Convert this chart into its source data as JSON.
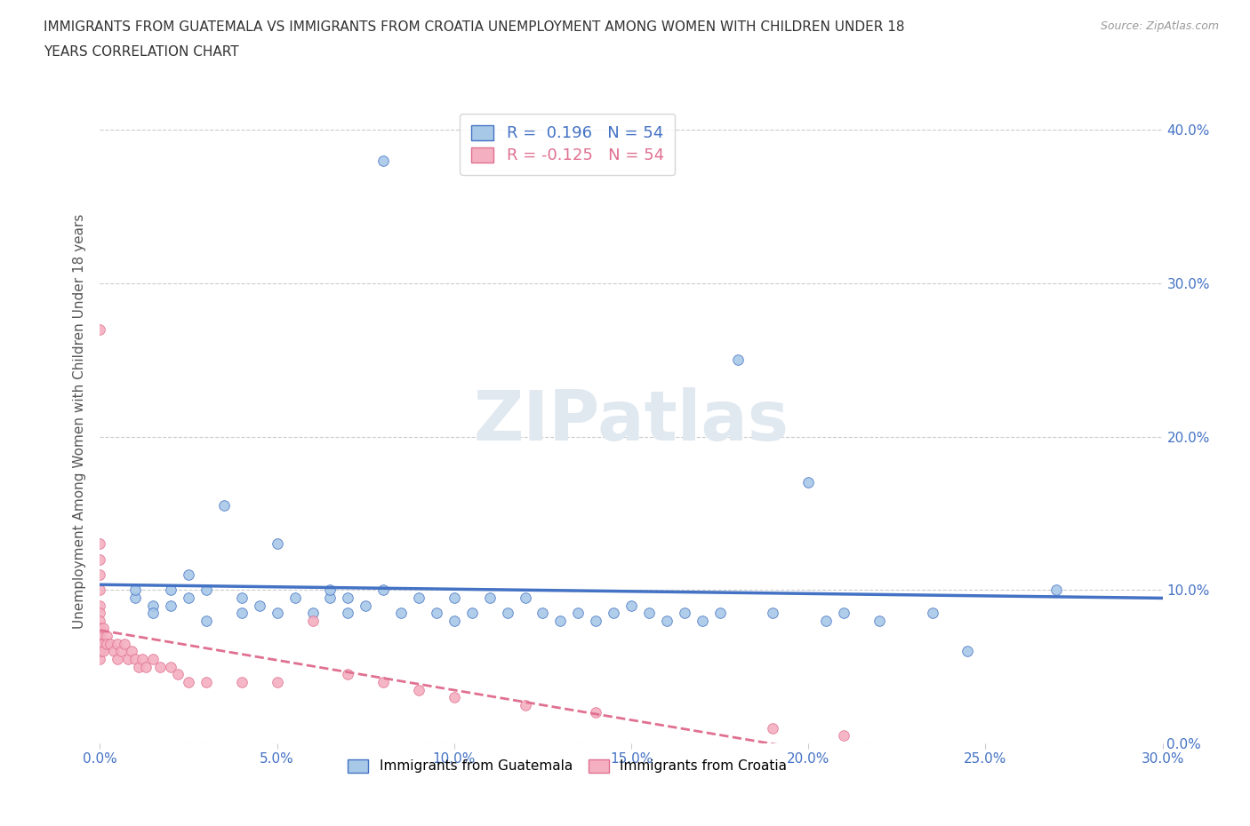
{
  "title_line1": "IMMIGRANTS FROM GUATEMALA VS IMMIGRANTS FROM CROATIA UNEMPLOYMENT AMONG WOMEN WITH CHILDREN UNDER 18",
  "title_line2": "YEARS CORRELATION CHART",
  "source": "Source: ZipAtlas.com",
  "ylabel_label": "Unemployment Among Women with Children Under 18 years",
  "xmin": 0.0,
  "xmax": 0.3,
  "ymin": 0.0,
  "ymax": 0.42,
  "r_guatemala": 0.196,
  "n_guatemala": 54,
  "r_croatia": -0.125,
  "n_croatia": 54,
  "color_guatemala": "#a8c8e8",
  "color_croatia": "#f4b0c0",
  "trend_color_guatemala": "#4472c4",
  "trend_color_croatia": "#e07090",
  "watermark": "ZIPatlas",
  "guatemala_x": [
    0.08,
    0.01,
    0.015,
    0.01,
    0.015,
    0.02,
    0.02,
    0.025,
    0.025,
    0.03,
    0.03,
    0.035,
    0.04,
    0.04,
    0.045,
    0.05,
    0.05,
    0.055,
    0.06,
    0.065,
    0.065,
    0.07,
    0.07,
    0.075,
    0.08,
    0.085,
    0.09,
    0.095,
    0.1,
    0.1,
    0.105,
    0.11,
    0.115,
    0.12,
    0.125,
    0.13,
    0.135,
    0.14,
    0.145,
    0.15,
    0.155,
    0.16,
    0.165,
    0.17,
    0.175,
    0.18,
    0.19,
    0.2,
    0.205,
    0.21,
    0.22,
    0.235,
    0.245,
    0.27
  ],
  "guatemala_y": [
    0.38,
    0.095,
    0.09,
    0.1,
    0.085,
    0.09,
    0.1,
    0.095,
    0.11,
    0.08,
    0.1,
    0.155,
    0.085,
    0.095,
    0.09,
    0.13,
    0.085,
    0.095,
    0.085,
    0.095,
    0.1,
    0.085,
    0.095,
    0.09,
    0.1,
    0.085,
    0.095,
    0.085,
    0.08,
    0.095,
    0.085,
    0.095,
    0.085,
    0.095,
    0.085,
    0.08,
    0.085,
    0.08,
    0.085,
    0.09,
    0.085,
    0.08,
    0.085,
    0.08,
    0.085,
    0.25,
    0.085,
    0.17,
    0.08,
    0.085,
    0.08,
    0.085,
    0.06,
    0.1
  ],
  "croatia_x": [
    0.0,
    0.0,
    0.0,
    0.0,
    0.0,
    0.0,
    0.0,
    0.0,
    0.0,
    0.0,
    0.0,
    0.0,
    0.0,
    0.0,
    0.0,
    0.0,
    0.0,
    0.0,
    0.0,
    0.0,
    0.001,
    0.001,
    0.001,
    0.002,
    0.002,
    0.003,
    0.004,
    0.005,
    0.005,
    0.006,
    0.007,
    0.008,
    0.009,
    0.01,
    0.011,
    0.012,
    0.013,
    0.015,
    0.017,
    0.02,
    0.022,
    0.025,
    0.03,
    0.04,
    0.05,
    0.06,
    0.07,
    0.08,
    0.09,
    0.1,
    0.12,
    0.14,
    0.19,
    0.21
  ],
  "croatia_y": [
    0.27,
    0.13,
    0.12,
    0.11,
    0.1,
    0.09,
    0.085,
    0.08,
    0.075,
    0.07,
    0.065,
    0.07,
    0.065,
    0.06,
    0.07,
    0.065,
    0.06,
    0.065,
    0.055,
    0.06,
    0.075,
    0.065,
    0.06,
    0.07,
    0.065,
    0.065,
    0.06,
    0.065,
    0.055,
    0.06,
    0.065,
    0.055,
    0.06,
    0.055,
    0.05,
    0.055,
    0.05,
    0.055,
    0.05,
    0.05,
    0.045,
    0.04,
    0.04,
    0.04,
    0.04,
    0.08,
    0.045,
    0.04,
    0.035,
    0.03,
    0.025,
    0.02,
    0.01,
    0.005
  ]
}
